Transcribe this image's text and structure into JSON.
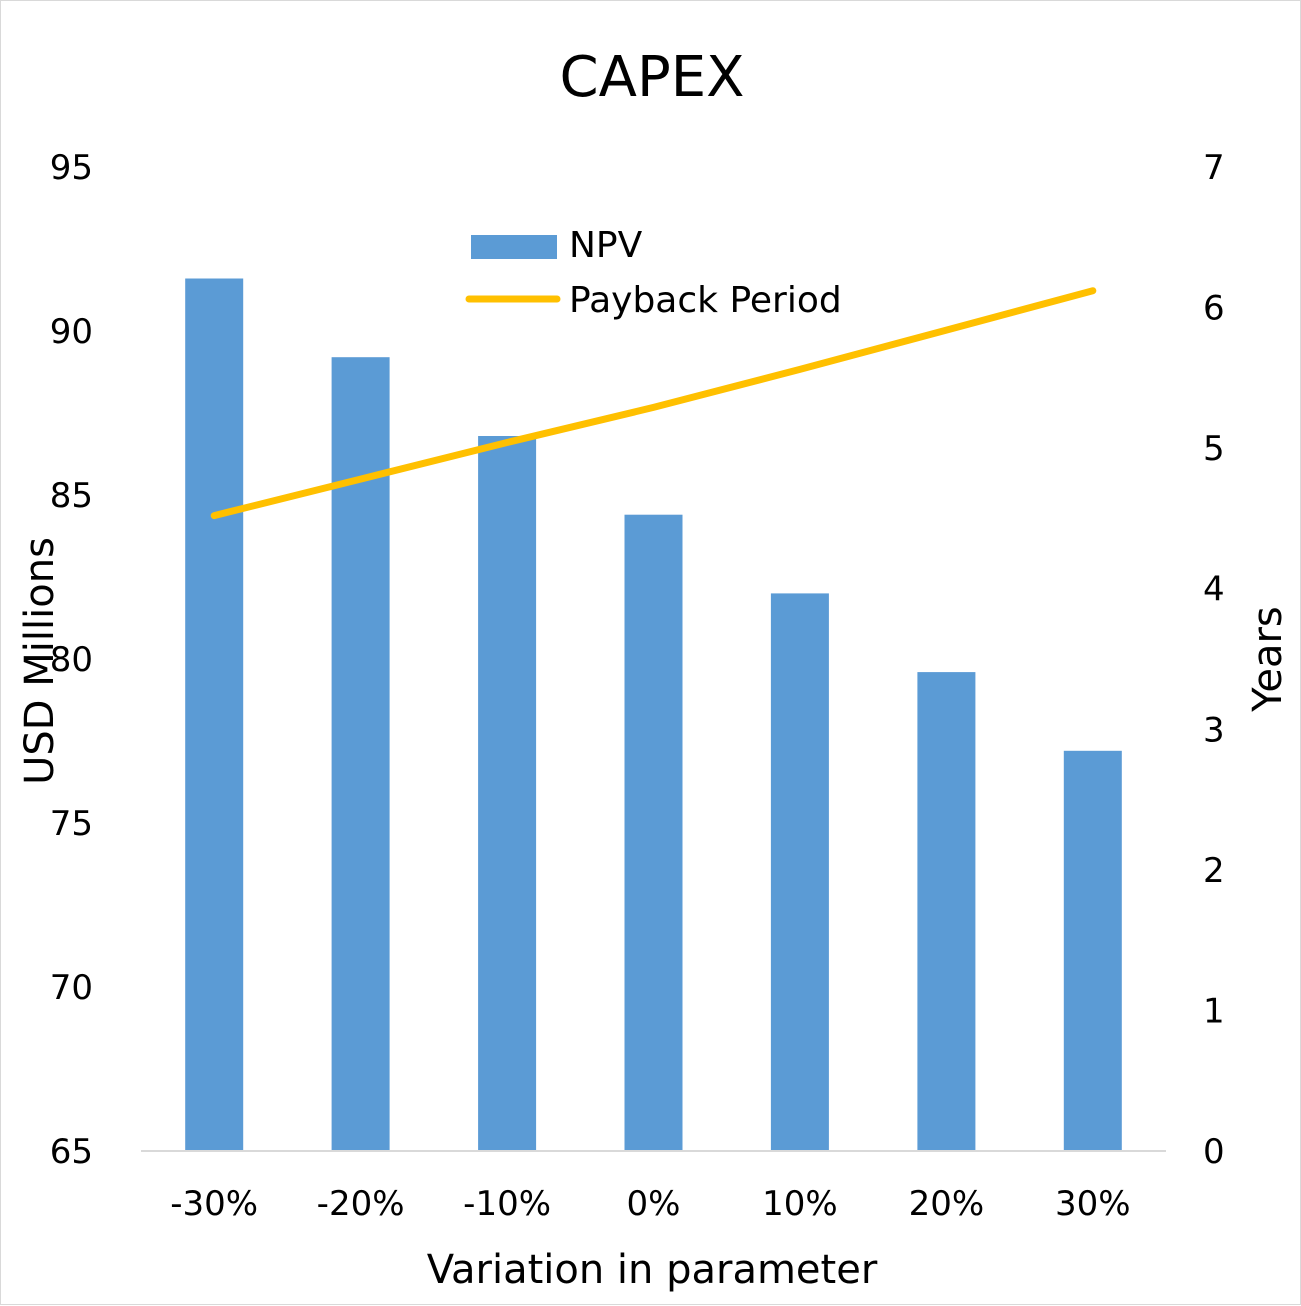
{
  "chart_data": {
    "type": "bar",
    "title": "CAPEX",
    "xlabel": "Variation in parameter",
    "ylabel": "USD Millions",
    "y2label": "Years",
    "categories": [
      "-30%",
      "-20%",
      "-10%",
      "0%",
      "10%",
      "20%",
      "30%"
    ],
    "ylim": [
      65,
      95
    ],
    "yticks": [
      "65",
      "70",
      "75",
      "80",
      "85",
      "90",
      "95"
    ],
    "y2lim": [
      0,
      7
    ],
    "y2ticks": [
      "0",
      "1",
      "2",
      "3",
      "4",
      "5",
      "6",
      "7"
    ],
    "grid": false,
    "legend_position": "top-center",
    "series": [
      {
        "name": "NPV",
        "type": "bar",
        "axis": "left",
        "color": "#5b9bd5",
        "values": [
          91.6,
          89.2,
          86.8,
          84.4,
          82.0,
          79.6,
          77.2
        ]
      },
      {
        "name": "Payback Period",
        "type": "line",
        "axis": "right",
        "color": "#ffc000",
        "values": [
          4.52,
          4.78,
          5.04,
          5.29,
          5.56,
          5.84,
          6.12
        ]
      }
    ]
  }
}
